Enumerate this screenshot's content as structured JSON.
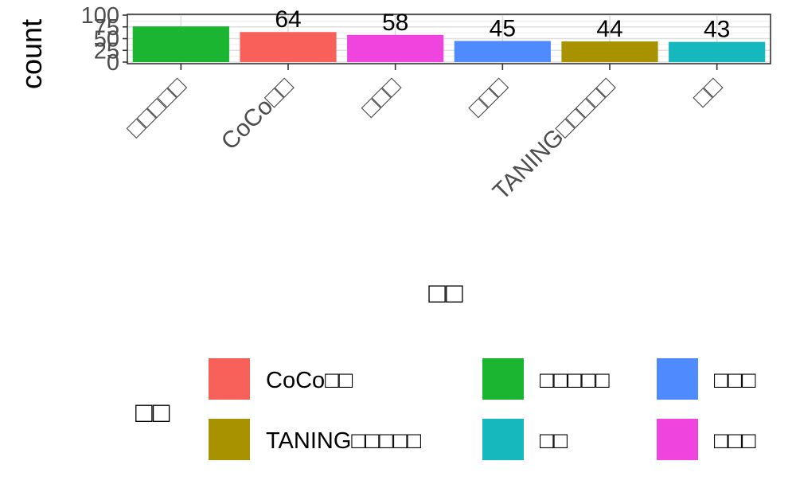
{
  "chart_data": {
    "type": "bar",
    "categories": [
      "□□□□□",
      "CoCo□□",
      "□□□",
      "□□□",
      "TANING□□□□□",
      "□□"
    ],
    "values": [
      76,
      64,
      58,
      45,
      44,
      43
    ],
    "data_labels": [
      "",
      "64",
      "58",
      "45",
      "44",
      "43"
    ],
    "bar_colors": [
      "#1BB532",
      "#F8605A",
      "#EF44DD",
      "#4F8BFF",
      "#A89200",
      "#16B8BE"
    ],
    "xlabel": "□□",
    "ylabel": "count",
    "yticks": [
      0,
      25,
      50,
      75,
      100
    ],
    "ytick_labels": [
      "0",
      "25",
      "50",
      "75",
      "100"
    ],
    "ylim": [
      0,
      100
    ],
    "grid": true,
    "legend": {
      "title": "□□",
      "placement": "bottom",
      "entries": [
        {
          "label": "CoCo□□",
          "color": "#F8605A"
        },
        {
          "label": "TANING□□□□□",
          "color": "#A89200"
        },
        {
          "label": "□□□□□",
          "color": "#1BB532"
        },
        {
          "label": "□□",
          "color": "#16B8BE"
        },
        {
          "label": "□□□",
          "color": "#4F8BFF"
        },
        {
          "label": "□□□",
          "color": "#EF44DD"
        }
      ]
    }
  }
}
